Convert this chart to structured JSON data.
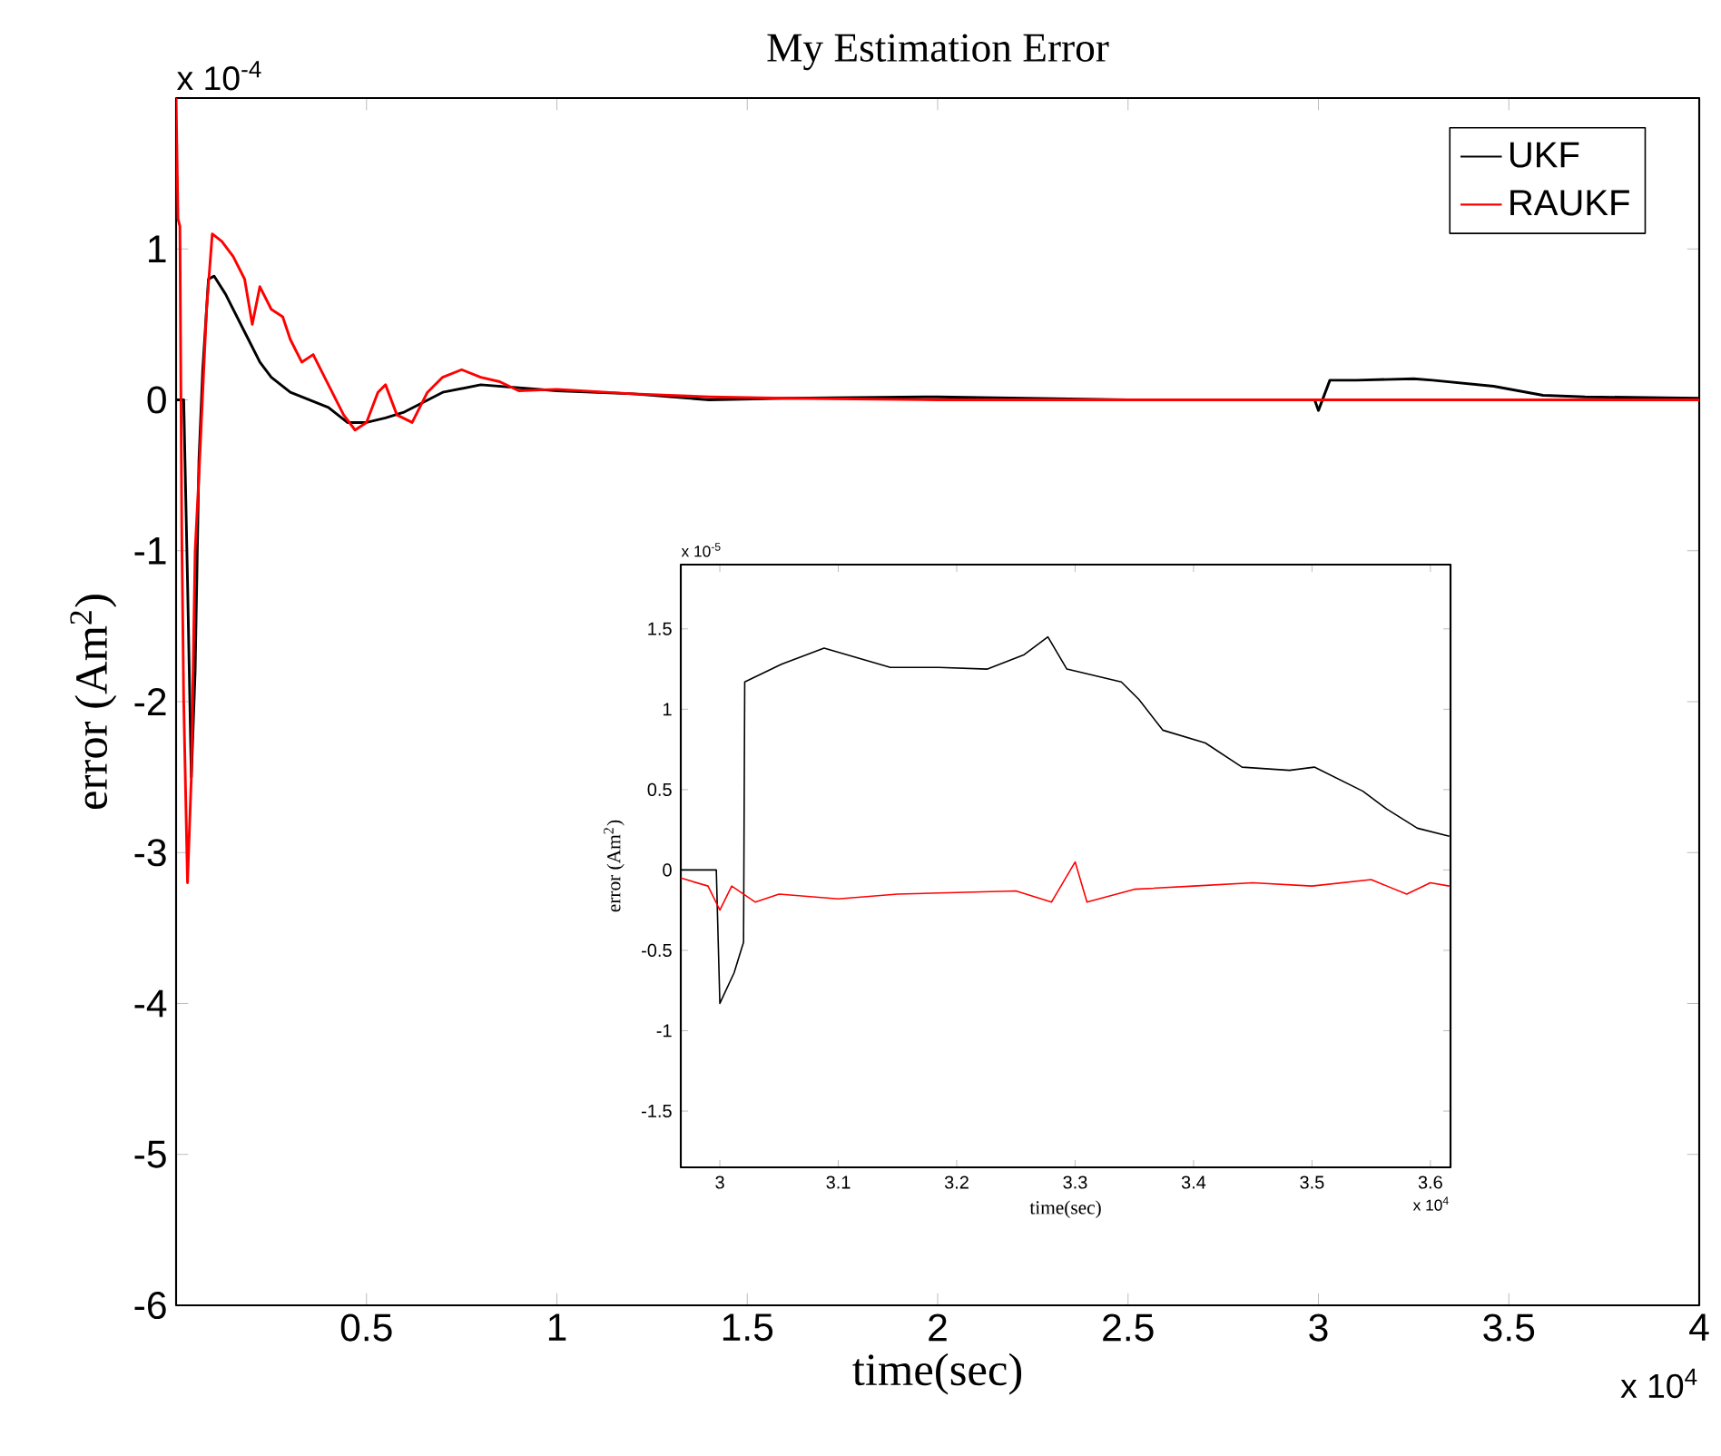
{
  "chart_data": [
    {
      "type": "line",
      "title": "My Estimation Error",
      "xlabel": "time(sec)",
      "ylabel": "error (Am$^{2}$)",
      "xlim": [
        0,
        4
      ],
      "xticks": [
        0.5,
        1,
        1.5,
        2,
        2.5,
        3,
        3.5,
        4
      ],
      "ylim": [
        -6,
        2
      ],
      "yticks": [
        -6,
        -5,
        -4,
        -3,
        -2,
        -1,
        0,
        1
      ],
      "legend": "top right",
      "annotations": [
        "x 10$^{-4}$",
        "x 10$^{4}$"
      ],
      "series": [
        {
          "name": "UKF",
          "color": "#000000",
          "x": [
            0.0,
            0.02,
            0.03,
            0.04,
            0.05,
            0.06,
            0.07,
            0.085,
            0.1,
            0.13,
            0.16,
            0.19,
            0.22,
            0.25,
            0.3,
            0.35,
            0.4,
            0.45,
            0.5,
            0.55,
            0.6,
            0.7,
            0.8,
            0.9,
            1.0,
            1.2,
            1.4,
            1.6,
            2.0,
            2.5,
            2.99,
            3.0,
            3.03,
            3.1,
            3.25,
            3.3,
            3.46,
            3.59,
            3.7,
            4.0
          ],
          "values": [
            0.0,
            0.0,
            -1.2,
            -2.5,
            -1.8,
            -0.4,
            0.2,
            0.8,
            0.82,
            0.7,
            0.55,
            0.4,
            0.25,
            0.15,
            0.05,
            0.0,
            -0.05,
            -0.15,
            -0.15,
            -0.12,
            -0.08,
            0.05,
            0.1,
            0.08,
            0.06,
            0.04,
            0.0,
            0.01,
            0.02,
            0.0,
            0.0,
            -0.07,
            0.13,
            0.13,
            0.14,
            0.13,
            0.09,
            0.03,
            0.02,
            0.01
          ]
        },
        {
          "name": "RAUKF",
          "color": "#ff0000",
          "x": [
            0.0,
            0.005,
            0.01,
            0.015,
            0.02,
            0.03,
            0.04,
            0.05,
            0.06,
            0.08,
            0.095,
            0.12,
            0.15,
            0.18,
            0.2,
            0.22,
            0.25,
            0.28,
            0.3,
            0.33,
            0.36,
            0.4,
            0.44,
            0.47,
            0.5,
            0.53,
            0.55,
            0.58,
            0.62,
            0.66,
            0.7,
            0.75,
            0.8,
            0.85,
            0.9,
            1.0,
            1.2,
            1.4,
            1.6,
            2.0,
            2.5,
            3.0,
            3.5,
            4.0
          ],
          "values": [
            2.0,
            1.2,
            1.15,
            -0.9,
            -2.0,
            -3.2,
            -2.5,
            -1.0,
            -0.5,
            0.6,
            1.1,
            1.05,
            0.95,
            0.8,
            0.5,
            0.75,
            0.6,
            0.55,
            0.4,
            0.25,
            0.3,
            0.1,
            -0.1,
            -0.2,
            -0.15,
            0.05,
            0.1,
            -0.1,
            -0.15,
            0.05,
            0.15,
            0.2,
            0.15,
            0.12,
            0.06,
            0.07,
            0.04,
            0.02,
            0.01,
            0.0,
            0.0,
            0.0,
            0.0,
            0.0
          ]
        }
      ]
    },
    {
      "type": "line",
      "xlabel": "time(sec)",
      "ylabel": "error (Am$^{2}$)",
      "xlim": [
        2.967,
        3.617
      ],
      "xticks": [
        3,
        3.1,
        3.2,
        3.3,
        3.4,
        3.5,
        3.6
      ],
      "ylim": [
        -1.85,
        1.9
      ],
      "yticks": [
        -1.5,
        -1,
        -0.5,
        0,
        0.5,
        1,
        1.5
      ],
      "annotations": [
        "x 10$^{-5}$",
        "x 10$^{4}$"
      ],
      "series": [
        {
          "color": "#000000",
          "x": [
            2.967,
            2.997,
            3.0,
            3.012,
            3.02,
            3.021,
            3.052,
            3.088,
            3.144,
            3.185,
            3.226,
            3.257,
            3.277,
            3.293,
            3.339,
            3.354,
            3.374,
            3.41,
            3.441,
            3.481,
            3.502,
            3.543,
            3.563,
            3.589,
            3.616
          ],
          "values": [
            0.0,
            0.0,
            -0.83,
            -0.64,
            -0.45,
            1.17,
            1.28,
            1.38,
            1.26,
            1.26,
            1.25,
            1.34,
            1.45,
            1.25,
            1.17,
            1.06,
            0.87,
            0.79,
            0.64,
            0.62,
            0.64,
            0.49,
            0.38,
            0.26,
            0.21
          ]
        },
        {
          "color": "#ff0000",
          "x": [
            2.967,
            2.99,
            3.0,
            3.01,
            3.03,
            3.05,
            3.1,
            3.15,
            3.2,
            3.25,
            3.28,
            3.3,
            3.31,
            3.35,
            3.4,
            3.45,
            3.5,
            3.55,
            3.58,
            3.6,
            3.616
          ],
          "values": [
            -0.05,
            -0.1,
            -0.25,
            -0.1,
            -0.2,
            -0.15,
            -0.18,
            -0.15,
            -0.14,
            -0.13,
            -0.2,
            0.05,
            -0.2,
            -0.12,
            -0.1,
            -0.08,
            -0.1,
            -0.06,
            -0.15,
            -0.08,
            -0.1
          ]
        }
      ]
    }
  ]
}
